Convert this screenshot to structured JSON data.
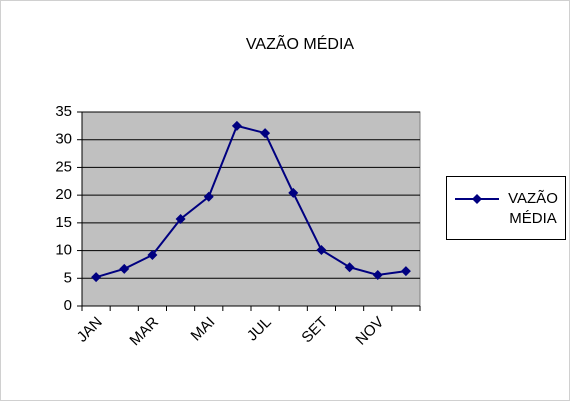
{
  "chart_data": {
    "type": "line",
    "title": "VAZÃO MÉDIA",
    "categories": [
      "JAN",
      null,
      "MAR",
      null,
      "MAI",
      null,
      "JUL",
      null,
      "SET",
      null,
      "NOV",
      null
    ],
    "series": [
      {
        "name": "VAZÃO MÉDIA",
        "color": "#000080",
        "values": [
          5.2,
          6.7,
          9.2,
          15.7,
          19.7,
          32.5,
          31.2,
          20.4,
          10.1,
          7.0,
          5.6,
          6.3
        ]
      }
    ],
    "ylim": [
      0,
      35
    ],
    "yticks": [
      0,
      5,
      10,
      15,
      20,
      25,
      30,
      35
    ],
    "grid": true,
    "plot_background": "#c0c0c0",
    "legend": "right"
  }
}
